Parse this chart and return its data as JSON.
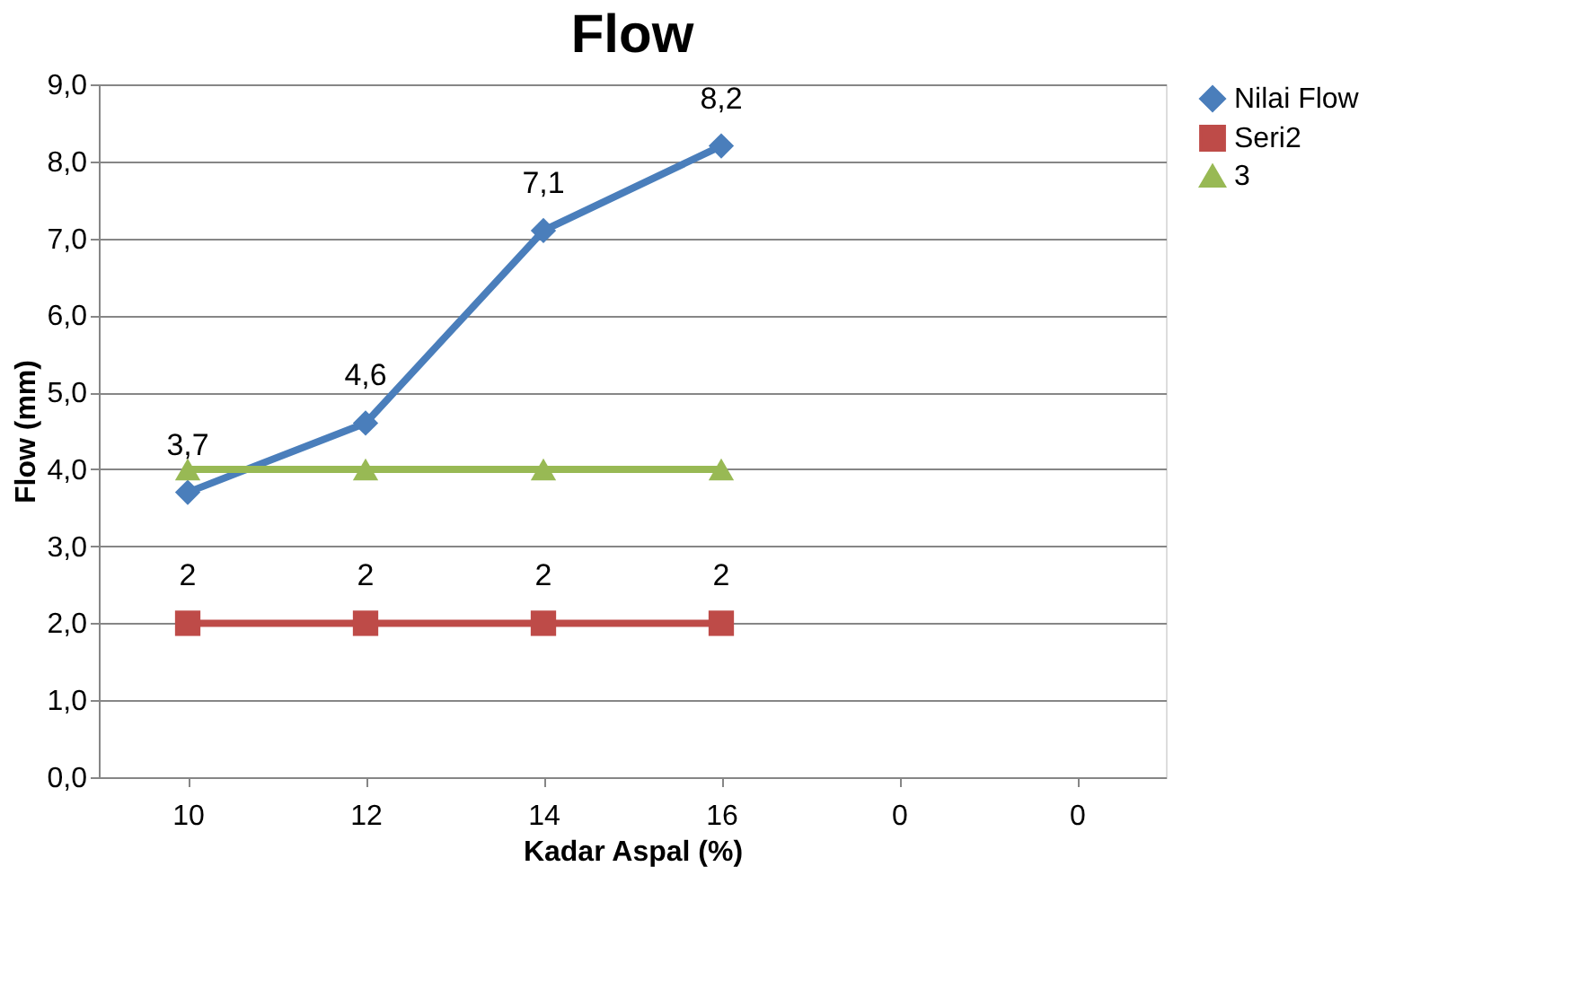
{
  "chart_data": {
    "type": "line",
    "title": "Flow",
    "xlabel": "Kadar Aspal (%)",
    "ylabel": "Flow (mm)",
    "categories": [
      "10",
      "12",
      "14",
      "16",
      "0",
      "0"
    ],
    "series": [
      {
        "name": "Nilai Flow",
        "color": "#4a7ebb",
        "marker": "diamond",
        "values": [
          3.7,
          4.6,
          7.1,
          8.2,
          null,
          null
        ],
        "value_labels": [
          "3,7",
          "4,6",
          "7,1",
          "8,2",
          null,
          null
        ]
      },
      {
        "name": "Seri2",
        "color": "#be4b48",
        "marker": "square",
        "values": [
          2,
          2,
          2,
          2,
          null,
          null
        ],
        "value_labels": [
          "2",
          "2",
          "2",
          "2",
          null,
          null
        ]
      },
      {
        "name": "3",
        "color": "#98b954",
        "marker": "triangle",
        "values": [
          4,
          4,
          4,
          4,
          null,
          null
        ]
      }
    ],
    "ylim": [
      0,
      9
    ],
    "yticks": [
      {
        "value": 0,
        "label": "0,0"
      },
      {
        "value": 1,
        "label": "1,0"
      },
      {
        "value": 2,
        "label": "2,0"
      },
      {
        "value": 3,
        "label": "3,0"
      },
      {
        "value": 4,
        "label": "4,0"
      },
      {
        "value": 5,
        "label": "5,0"
      },
      {
        "value": 6,
        "label": "6,0"
      },
      {
        "value": 7,
        "label": "7,0"
      },
      {
        "value": 8,
        "label": "8,0"
      },
      {
        "value": 9,
        "label": "9,0"
      }
    ],
    "grid": "y",
    "legend": "right"
  }
}
